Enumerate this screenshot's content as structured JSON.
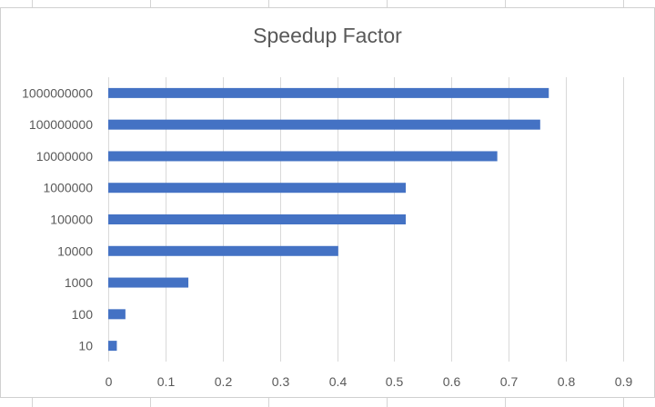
{
  "chart_data": {
    "type": "bar",
    "orientation": "horizontal",
    "title": "Speedup Factor",
    "categories": [
      "10",
      "100",
      "1000",
      "10000",
      "100000",
      "1000000",
      "10000000",
      "100000000",
      "1000000000"
    ],
    "values": [
      0.015,
      0.03,
      0.14,
      0.402,
      0.52,
      0.52,
      0.68,
      0.755,
      0.77
    ],
    "xlim": [
      0,
      0.9
    ],
    "xticks": [
      "0",
      "0.1",
      "0.2",
      "0.3",
      "0.4",
      "0.5",
      "0.6",
      "0.7",
      "0.8",
      "0.9"
    ],
    "grid": "vertical",
    "legend": "none",
    "bar_color": "#4472c4",
    "grid_color": "#d9d9d9"
  }
}
